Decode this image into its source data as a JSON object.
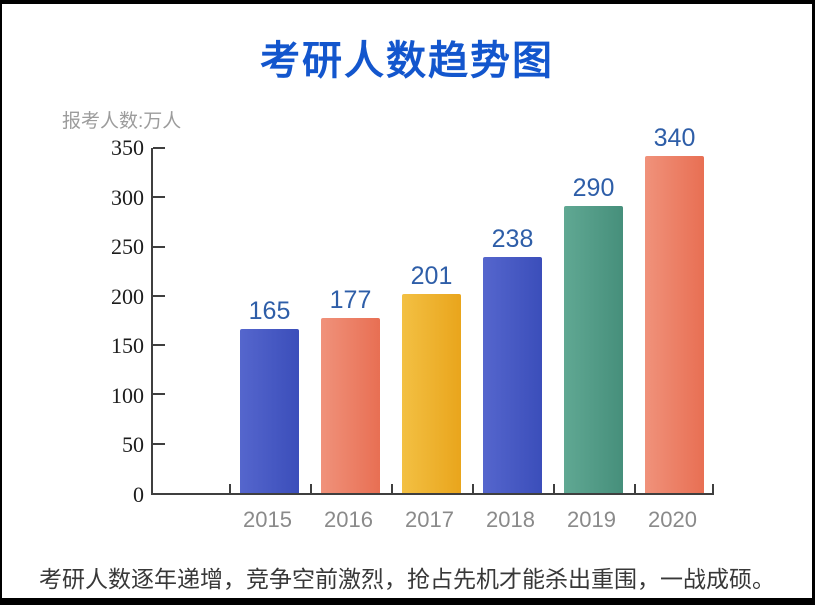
{
  "title": "考研人数趋势图",
  "caption": "考研人数逐年递增，竞争空前激烈，抢占先机才能杀出重围，一战成硕。",
  "colors": {
    "title_blue": "#1356cd",
    "value_label_blue": "#2e5ea8",
    "axis_gray": "#3f3f3f",
    "xlabel_gray": "#8a8a8a",
    "unit_gray": "#9c9c9c"
  },
  "chart_data": {
    "type": "bar",
    "title": "考研人数趋势图",
    "xlabel": "",
    "ylabel": "报考人数:万人",
    "categories": [
      "2015",
      "2016",
      "2017",
      "2018",
      "2019",
      "2020"
    ],
    "values": [
      165,
      177,
      201,
      238,
      290,
      340
    ],
    "ylim": [
      0,
      350
    ],
    "yticks": [
      "350",
      "300",
      "250",
      "200",
      "150",
      "100",
      "50",
      "0"
    ],
    "grid": false,
    "legend": "none",
    "value_labels_shown": true,
    "bar_colors": [
      {
        "from": "#5566cd",
        "to": "#3b4eba"
      },
      {
        "from": "#f0927b",
        "to": "#e86f53"
      },
      {
        "from": "#f3c043",
        "to": "#e9a51c"
      },
      {
        "from": "#5566cd",
        "to": "#3b4eba"
      },
      {
        "from": "#60a893",
        "to": "#468f7b"
      },
      {
        "from": "#f0927b",
        "to": "#e86f53"
      }
    ]
  }
}
